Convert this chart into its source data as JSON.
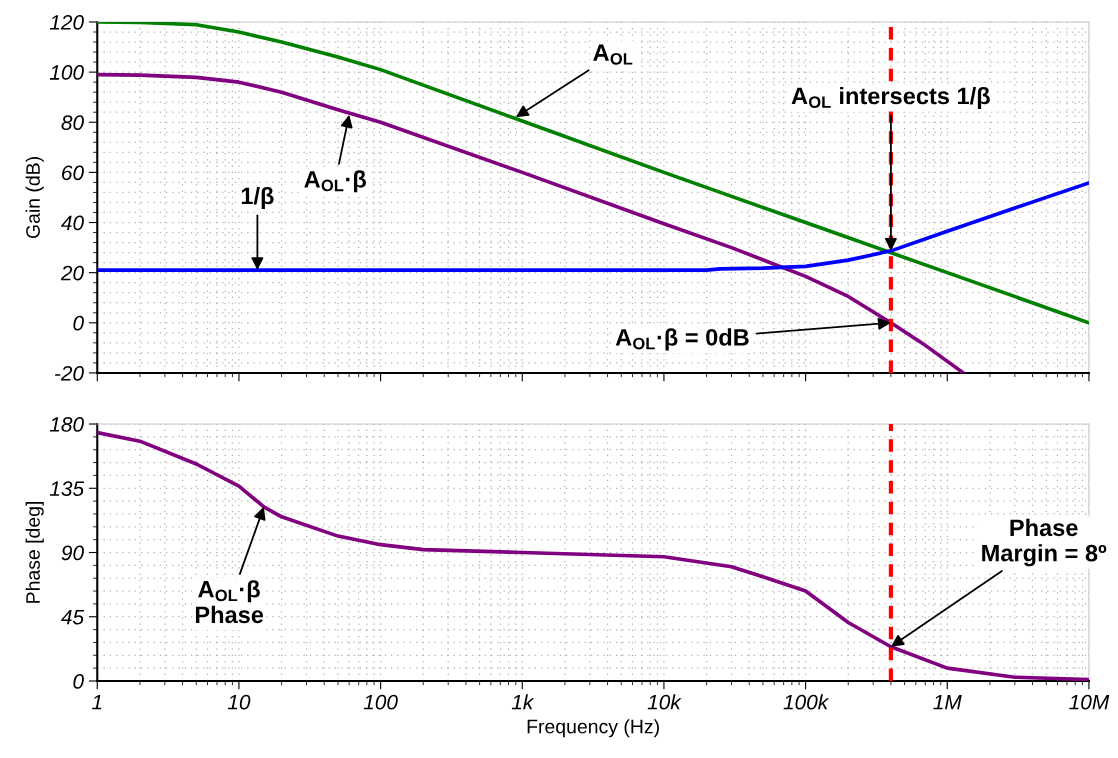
{
  "chart_data": [
    {
      "type": "line",
      "ylabel": "Gain (dB)",
      "log": "x",
      "xlim": [
        1,
        10000000
      ],
      "ylim": [
        -20,
        120
      ],
      "yticks": [
        -20,
        0,
        20,
        40,
        60,
        80,
        100,
        120
      ],
      "xticks": [
        {
          "value": 1,
          "label": null
        },
        {
          "value": 10,
          "label": null
        },
        {
          "value": 100,
          "label": null
        },
        {
          "value": 1000,
          "label": null
        },
        {
          "value": 10000,
          "label": null
        },
        {
          "value": 100000,
          "label": null
        },
        {
          "value": 1000000,
          "label": null
        },
        {
          "value": 10000000,
          "label": null
        }
      ],
      "tick_labels": "y",
      "grid": true,
      "legend": false,
      "series": [
        {
          "color": "#008000",
          "x": [
            1,
            2,
            5,
            10,
            20,
            50,
            100,
            1000,
            10000,
            100000,
            1000000,
            10000000
          ],
          "values": [
            120,
            119.8,
            118.9,
            116,
            112,
            106,
            101,
            80.5,
            60,
            40,
            20,
            0
          ]
        },
        {
          "color": "#800080",
          "x": [
            1,
            2,
            5,
            10,
            20,
            50,
            100,
            1000,
            10000,
            30000,
            100000,
            200000,
            400000,
            700000,
            1300000
          ],
          "values": [
            99,
            98.8,
            97.9,
            96,
            92,
            85,
            80,
            60,
            39.5,
            30,
            18.5,
            10.5,
            0,
            -9,
            -20
          ]
        },
        {
          "color": "#0000ff",
          "x": [
            1,
            20000,
            25000,
            50000,
            100000,
            200000,
            400000,
            1000000,
            3000000,
            10000000
          ],
          "values": [
            21,
            21,
            21.5,
            21.8,
            22.5,
            25,
            28.7,
            36.5,
            45.8,
            55.8
          ]
        }
      ],
      "ref_lines": [
        {
          "axis": "x",
          "value": 400000,
          "color": "#ff0000",
          "line_style": "dashed"
        }
      ],
      "annotations": [
        {
          "text": "A$_{OL}$",
          "x": 900,
          "y": 82
        },
        {
          "text": "A$_{OL}$·β",
          "x": 60,
          "y": 83
        },
        {
          "text": "1/β",
          "x": 13.5,
          "y": 21
        },
        {
          "text": "A$_{OL}$ intersects 1/β",
          "x": 400000,
          "y": 28.7
        },
        {
          "text": "A$_{OL}$·β = 0dB",
          "x": 400000,
          "y": 0
        }
      ]
    },
    {
      "type": "line",
      "ylabel": "Phase [deg]",
      "xlabel": "Frequency (Hz)",
      "log": "x",
      "xlim": [
        1,
        10000000
      ],
      "ylim": [
        0,
        180
      ],
      "yticks": [
        0,
        45,
        90,
        135,
        180
      ],
      "xticks": [
        1,
        10,
        100,
        {
          "value": 1000,
          "label": "1k"
        },
        {
          "value": 10000,
          "label": "10k"
        },
        {
          "value": 100000,
          "label": "100k"
        },
        {
          "value": 1000000,
          "label": "1M"
        },
        {
          "value": 10000000,
          "label": "10M"
        }
      ],
      "grid": true,
      "legend": false,
      "series": [
        {
          "color": "#800080",
          "x": [
            1,
            2,
            5,
            10,
            15,
            20,
            50,
            100,
            200,
            1000,
            10000,
            30000,
            50000,
            100000,
            200000,
            400000,
            1000000,
            3000000,
            10000000
          ],
          "values": [
            174,
            168,
            152,
            136.5,
            122,
            115,
            101.5,
            95.5,
            92,
            90,
            87,
            80,
            73,
            63,
            41,
            24,
            9,
            2.6,
            1
          ]
        }
      ],
      "ref_lines": [
        {
          "axis": "x",
          "value": 400000,
          "color": "#ff0000",
          "line_style": "dashed"
        }
      ],
      "annotations": [
        {
          "text": "A$_{OL}$·β\nPhase",
          "x": 15,
          "y": 122
        },
        {
          "text": "Phase\nMargin = 8º",
          "x": 400000,
          "y": 24
        }
      ]
    }
  ]
}
